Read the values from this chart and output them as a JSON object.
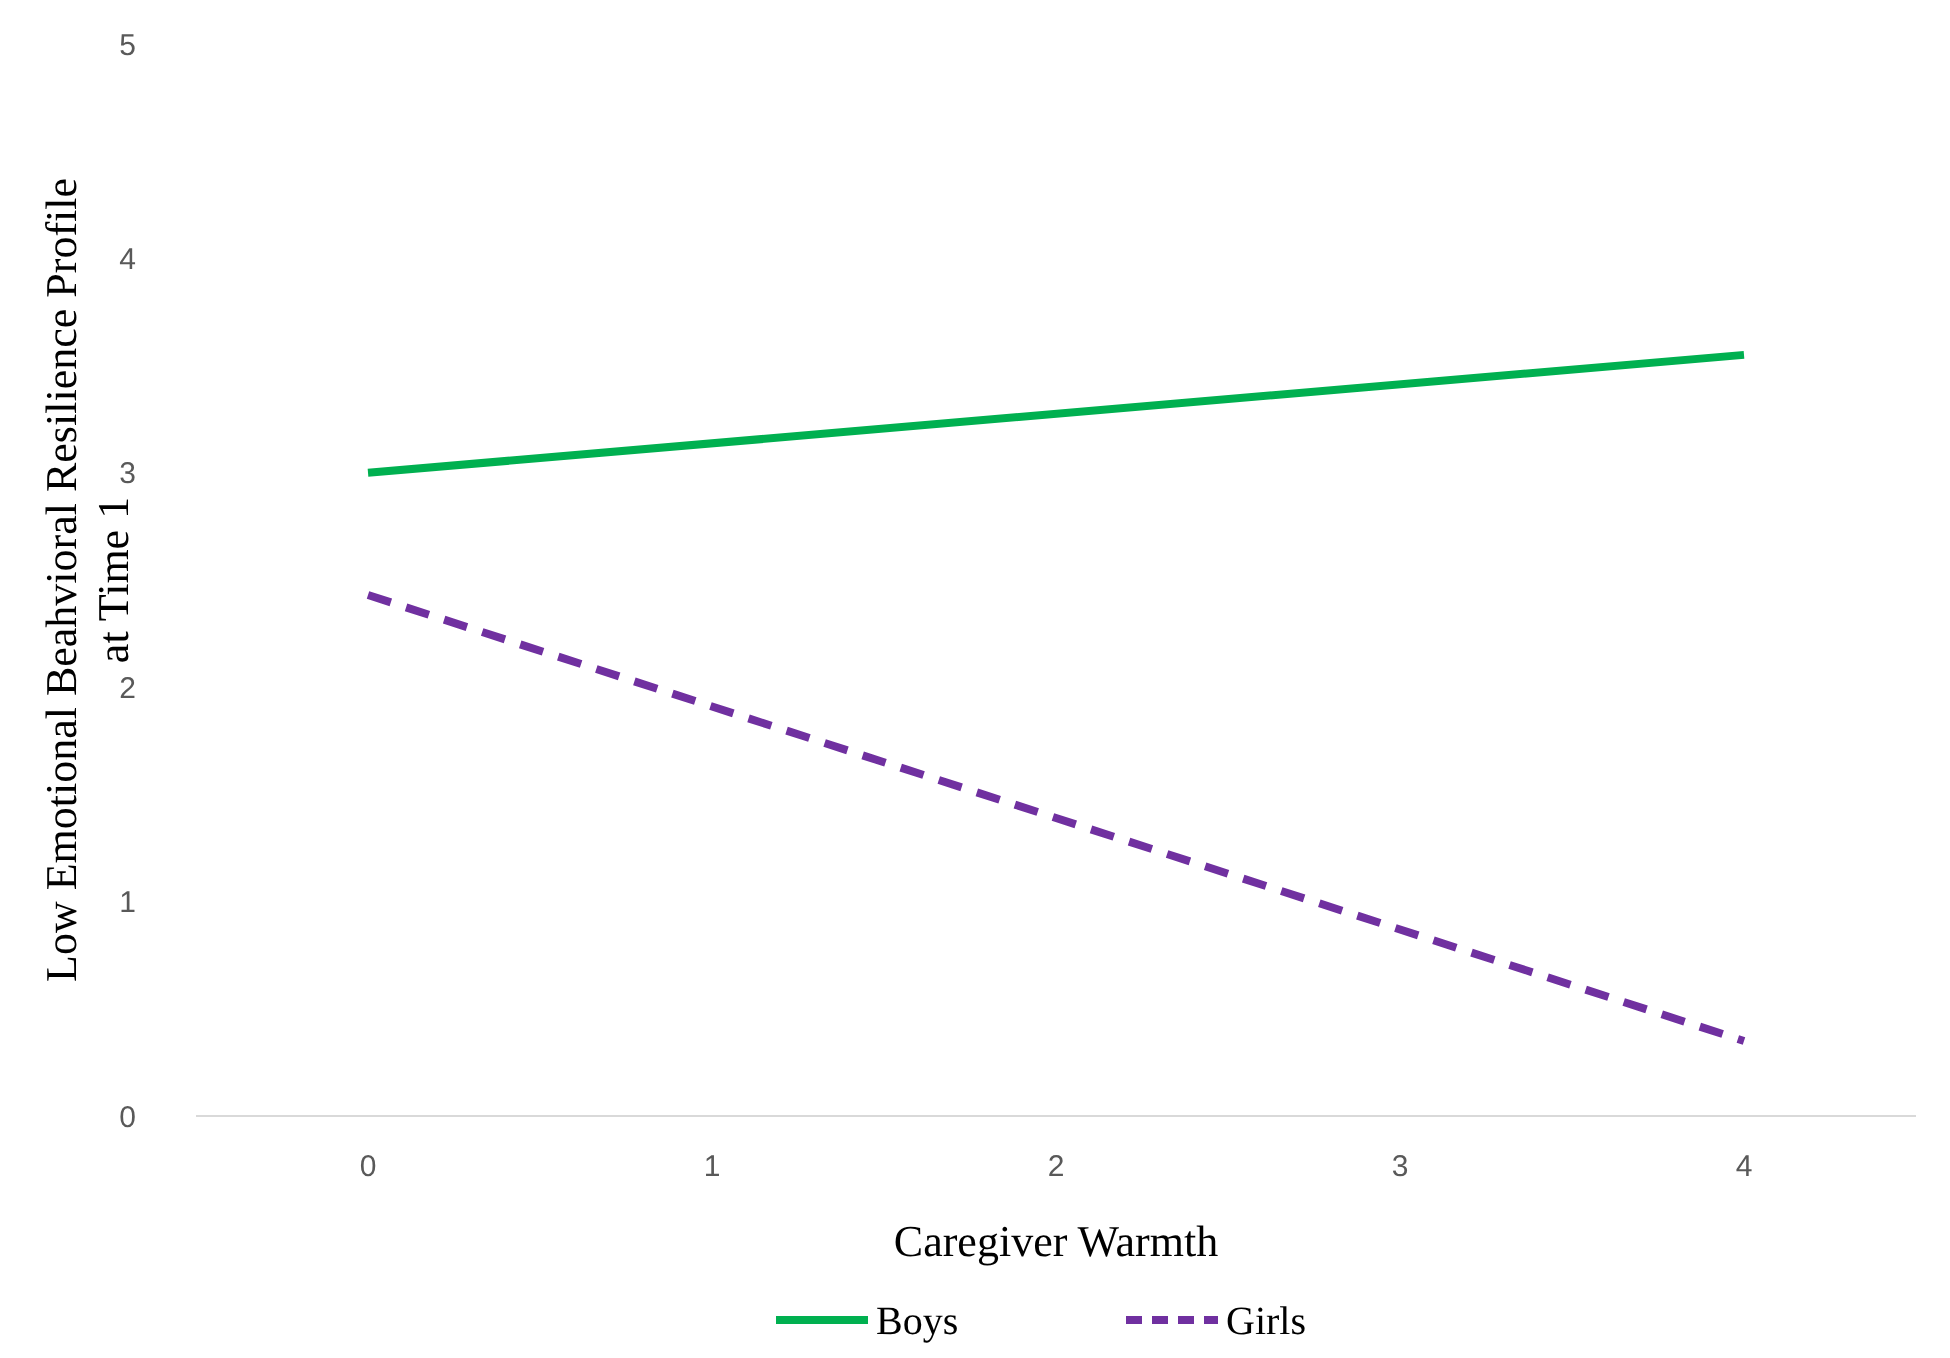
{
  "chart_data": {
    "type": "line",
    "xlabel": "Caregiver Warmth",
    "ylabel": "Low Emotional Beahvioral Resilience Profile at Time 1",
    "x": [
      0,
      4
    ],
    "xlim": [
      -0.5,
      4.5
    ],
    "xticks": [
      0,
      1,
      2,
      3,
      4
    ],
    "ylim": [
      0,
      5
    ],
    "yticks": [
      0,
      1,
      2,
      3,
      4,
      5
    ],
    "grid": false,
    "legend": "bottom",
    "series": [
      {
        "name": "Boys",
        "color": "#00b050",
        "values": [
          3.0,
          3.55
        ],
        "line_style": "solid"
      },
      {
        "name": "Girls",
        "color": "#7030a0",
        "values": [
          2.43,
          0.35
        ],
        "line_style": "dashed"
      }
    ]
  }
}
